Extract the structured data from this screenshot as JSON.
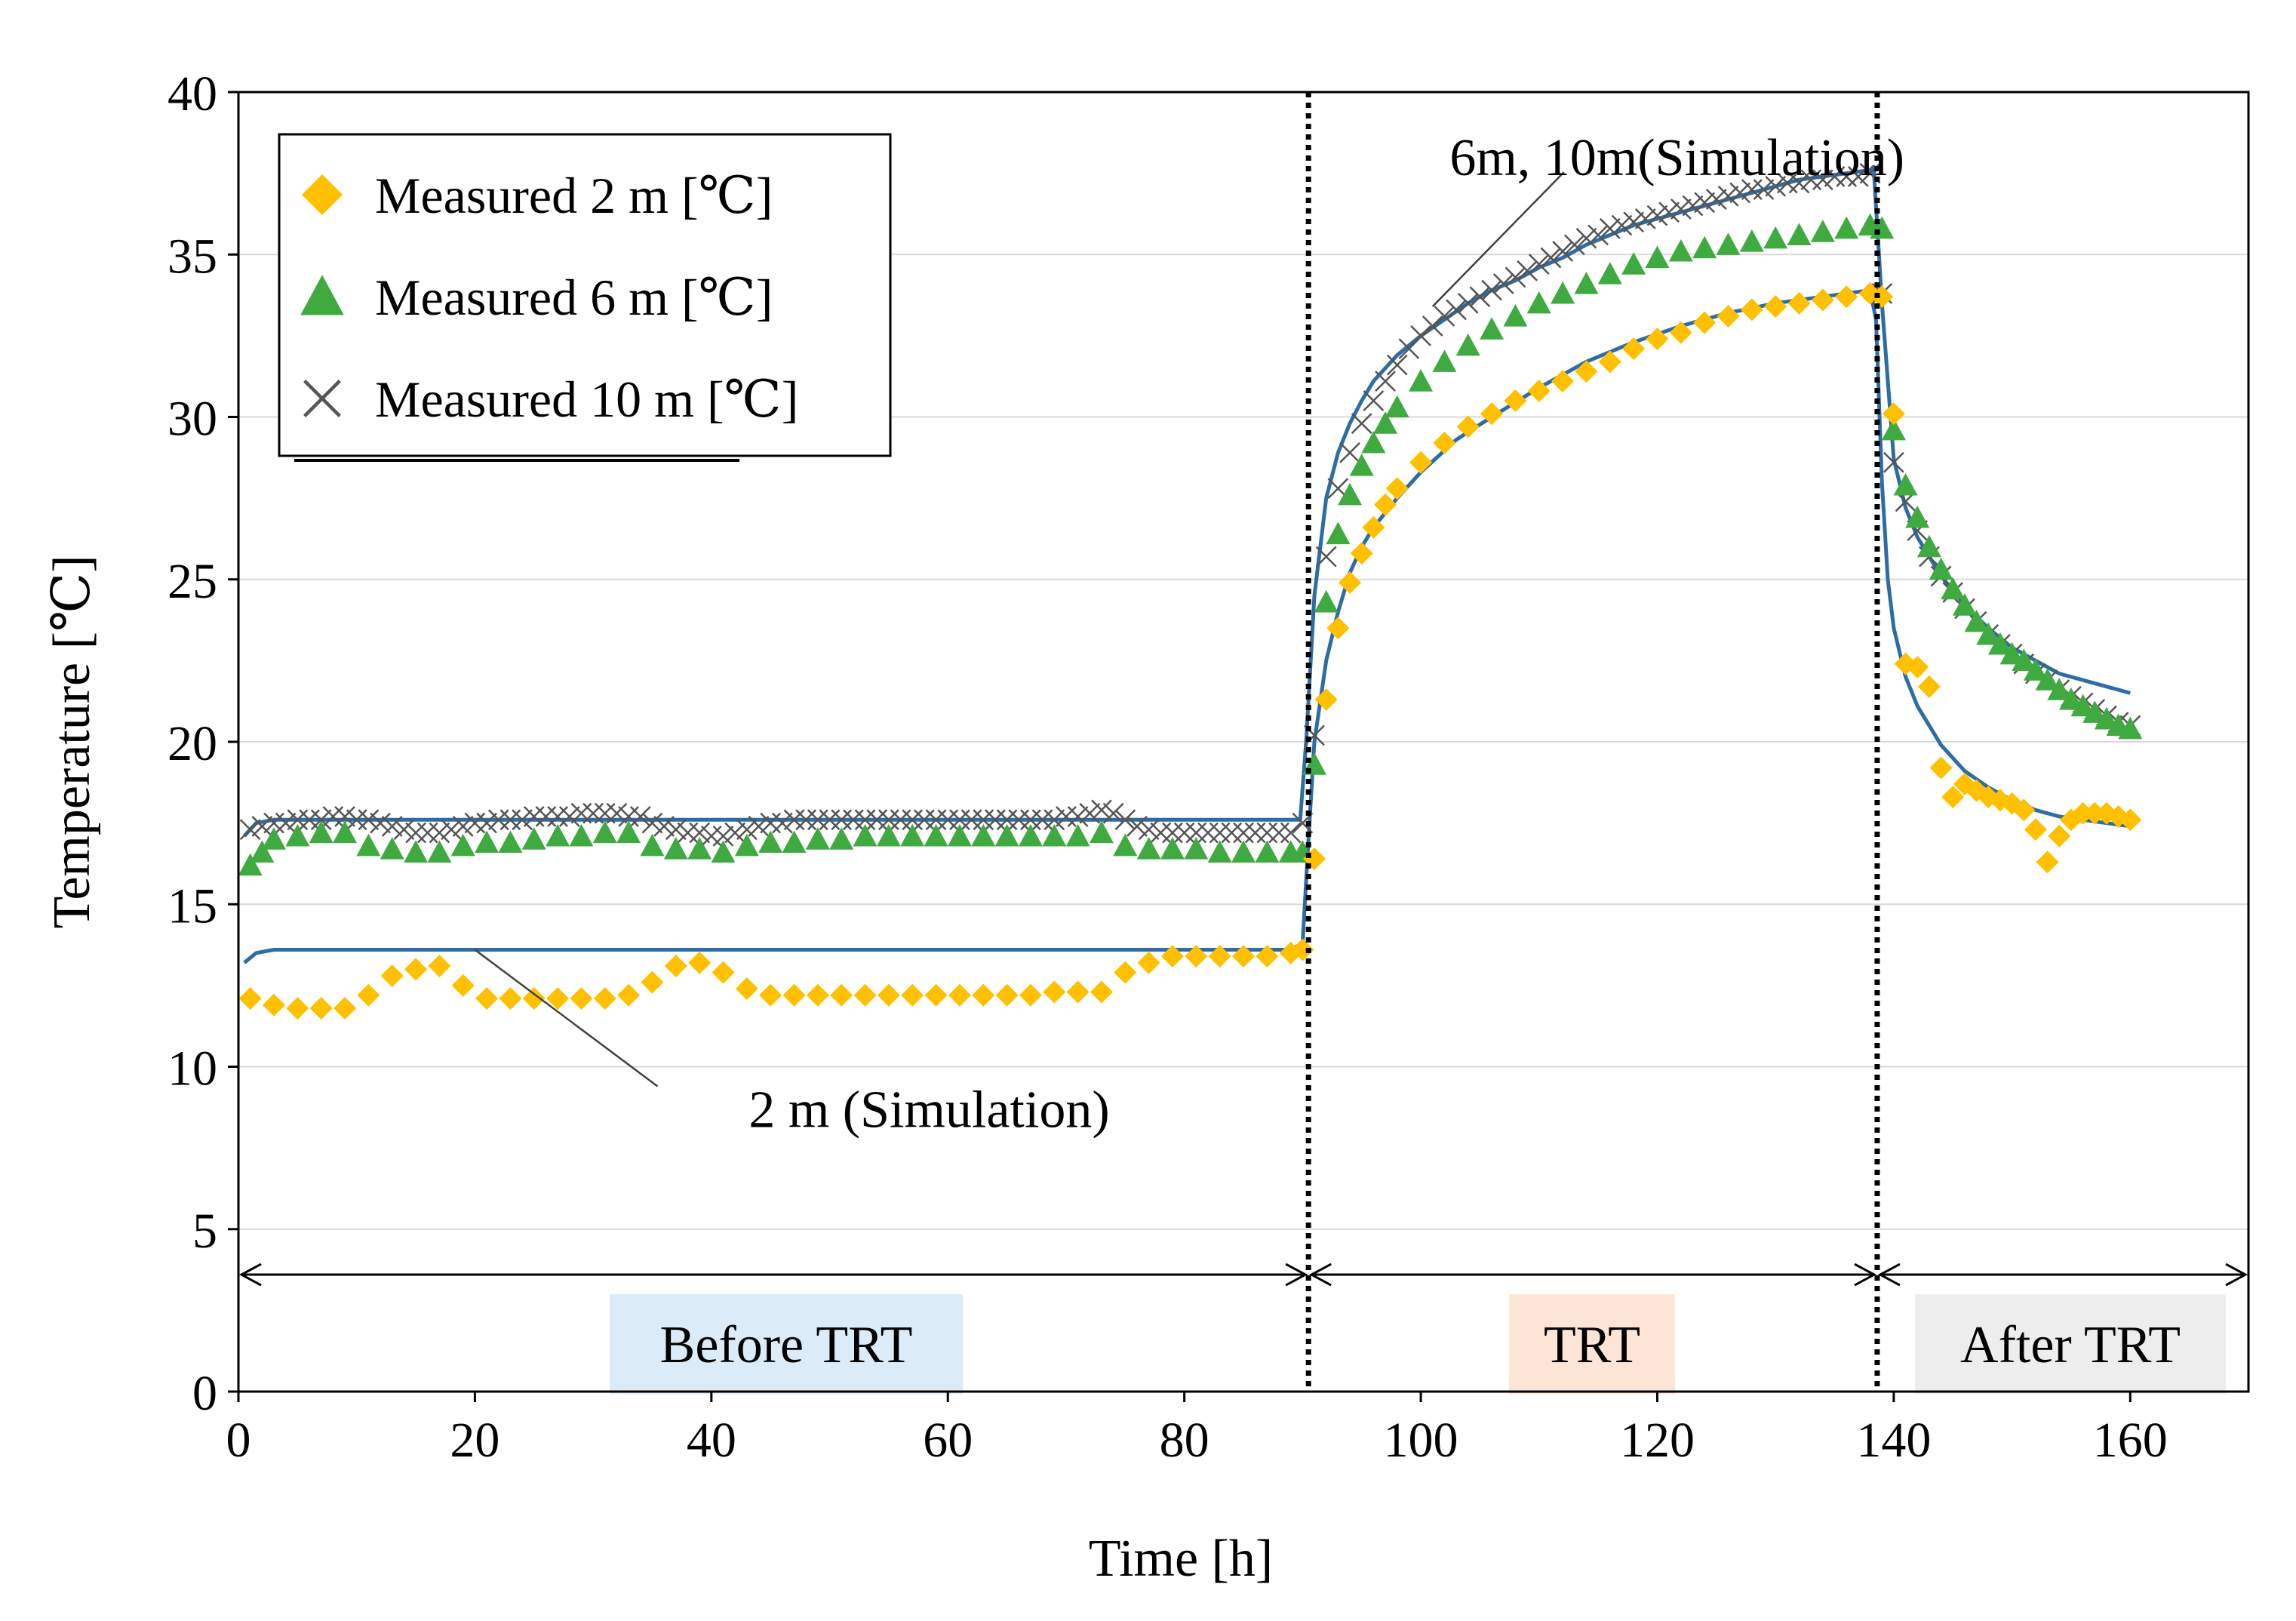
{
  "chart_data": {
    "type": "scatter",
    "xlabel": "Time  [h]",
    "ylabel": "Temperature  [℃]",
    "xlim": [
      0,
      170
    ],
    "ylim": [
      0,
      40
    ],
    "xticks": [
      0,
      20,
      40,
      60,
      80,
      100,
      120,
      140,
      160
    ],
    "yticks": [
      0,
      5,
      10,
      15,
      20,
      25,
      30,
      35,
      40
    ],
    "grid": "horizontal",
    "legend_position": "top-left",
    "colors": {
      "measured_2m": "#FFC000",
      "measured_6m": "#3FAA3F",
      "measured_10m": "#555555",
      "simulation": "#2E6DA4",
      "before_box": "#DCEBF8",
      "trt_box": "#FCE4D6",
      "after_box": "#EDEDED"
    },
    "series": [
      {
        "name": "Measured 2 m [℃]",
        "marker": "diamond",
        "x": [
          1,
          3,
          5,
          7,
          9,
          11,
          13,
          15,
          17,
          19,
          21,
          23,
          25,
          27,
          29,
          31,
          33,
          35,
          37,
          39,
          41,
          43,
          45,
          47,
          49,
          51,
          53,
          55,
          57,
          59,
          61,
          63,
          65,
          67,
          69,
          71,
          73,
          75,
          77,
          79,
          81,
          83,
          85,
          87,
          89,
          90,
          91,
          92,
          93,
          94,
          95,
          96,
          97,
          98,
          100,
          102,
          104,
          106,
          108,
          110,
          112,
          114,
          116,
          118,
          120,
          122,
          124,
          126,
          128,
          130,
          132,
          134,
          136,
          138,
          139,
          140,
          141,
          142,
          143,
          144,
          145,
          146,
          147,
          148,
          149,
          150,
          151,
          152,
          153,
          154,
          155,
          156,
          157,
          158,
          159,
          160
        ],
        "y": [
          12.1,
          11.9,
          11.8,
          11.8,
          11.8,
          12.2,
          12.8,
          13,
          13.1,
          12.5,
          12.1,
          12.1,
          12.1,
          12.1,
          12.1,
          12.1,
          12.2,
          12.6,
          13.1,
          13.2,
          12.9,
          12.4,
          12.2,
          12.2,
          12.2,
          12.2,
          12.2,
          12.2,
          12.2,
          12.2,
          12.2,
          12.2,
          12.2,
          12.2,
          12.3,
          12.3,
          12.3,
          12.9,
          13.2,
          13.4,
          13.4,
          13.4,
          13.4,
          13.4,
          13.5,
          13.6,
          16.4,
          21.3,
          23.5,
          24.9,
          25.8,
          26.6,
          27.3,
          27.8,
          28.6,
          29.2,
          29.7,
          30.1,
          30.5,
          30.8,
          31.1,
          31.4,
          31.7,
          32.1,
          32.4,
          32.6,
          32.9,
          33.1,
          33.3,
          33.4,
          33.5,
          33.6,
          33.7,
          33.8,
          33.7,
          30.1,
          22.4,
          22.3,
          21.7,
          19.2,
          18.3,
          18.7,
          18.5,
          18.3,
          18.2,
          18.1,
          17.9,
          17.3,
          16.3,
          17.1,
          17.6,
          17.8,
          17.8,
          17.8,
          17.7,
          17.6
        ]
      },
      {
        "name": "Measured 6 m [℃]",
        "marker": "triangle",
        "x": [
          1,
          2,
          3,
          5,
          7,
          9,
          11,
          13,
          15,
          17,
          19,
          21,
          23,
          25,
          27,
          29,
          31,
          33,
          35,
          37,
          39,
          41,
          43,
          45,
          47,
          49,
          51,
          53,
          55,
          57,
          59,
          61,
          63,
          65,
          67,
          69,
          71,
          73,
          75,
          77,
          79,
          81,
          83,
          85,
          87,
          89,
          90,
          91,
          92,
          93,
          94,
          95,
          96,
          97,
          98,
          100,
          102,
          104,
          106,
          108,
          110,
          112,
          114,
          116,
          118,
          120,
          122,
          124,
          126,
          128,
          130,
          132,
          134,
          136,
          138,
          139,
          140,
          141,
          142,
          143,
          144,
          145,
          146,
          147,
          148,
          149,
          150,
          151,
          152,
          153,
          154,
          155,
          156,
          157,
          158,
          159,
          160
        ],
        "y": [
          16.2,
          16.6,
          17,
          17.1,
          17.2,
          17.2,
          16.8,
          16.7,
          16.6,
          16.6,
          16.8,
          16.9,
          16.9,
          17,
          17.1,
          17.1,
          17.2,
          17.2,
          16.8,
          16.7,
          16.7,
          16.6,
          16.8,
          16.9,
          16.9,
          17,
          17,
          17.1,
          17.1,
          17.1,
          17.1,
          17.1,
          17.1,
          17.1,
          17.1,
          17.1,
          17.1,
          17.2,
          16.8,
          16.7,
          16.7,
          16.7,
          16.6,
          16.6,
          16.6,
          16.6,
          16.6,
          19.3,
          24.3,
          26.4,
          27.6,
          28.5,
          29.2,
          29.8,
          30.3,
          31.1,
          31.7,
          32.2,
          32.7,
          33.1,
          33.5,
          33.8,
          34.1,
          34.4,
          34.7,
          34.9,
          35.1,
          35.2,
          35.3,
          35.4,
          35.5,
          35.6,
          35.7,
          35.8,
          35.9,
          35.8,
          29.6,
          27.9,
          26.9,
          26,
          25.3,
          24.7,
          24.2,
          23.7,
          23.3,
          23,
          22.7,
          22.5,
          22.2,
          21.9,
          21.6,
          21.3,
          21.1,
          20.9,
          20.7,
          20.5,
          20.4
        ]
      },
      {
        "name": "Measured 10 m [℃]",
        "marker": "x",
        "x": [
          1,
          2,
          3,
          4,
          5,
          6,
          7,
          8,
          9,
          10,
          11,
          12,
          13,
          14,
          15,
          16,
          17,
          18,
          19,
          20,
          21,
          22,
          23,
          24,
          25,
          26,
          27,
          28,
          29,
          30,
          31,
          32,
          33,
          34,
          35,
          36,
          37,
          38,
          39,
          40,
          41,
          42,
          43,
          44,
          45,
          46,
          47,
          48,
          49,
          50,
          51,
          52,
          53,
          54,
          55,
          56,
          57,
          58,
          59,
          60,
          61,
          62,
          63,
          64,
          65,
          66,
          67,
          68,
          69,
          70,
          71,
          72,
          73,
          74,
          75,
          76,
          77,
          78,
          79,
          80,
          81,
          82,
          83,
          84,
          85,
          86,
          87,
          88,
          89,
          90,
          91,
          92,
          93,
          94,
          95,
          96,
          97,
          98,
          99,
          100,
          101,
          102,
          103,
          104,
          105,
          106,
          107,
          108,
          109,
          110,
          111,
          112,
          113,
          114,
          115,
          116,
          117,
          118,
          119,
          120,
          121,
          122,
          123,
          124,
          125,
          126,
          127,
          128,
          129,
          130,
          131,
          132,
          133,
          134,
          135,
          136,
          137,
          138,
          139,
          140,
          141,
          142,
          143,
          144,
          145,
          146,
          147,
          148,
          149,
          150,
          151,
          152,
          153,
          154,
          155,
          156,
          157,
          158,
          159,
          160
        ],
        "y": [
          17.3,
          17.4,
          17.5,
          17.5,
          17.6,
          17.6,
          17.6,
          17.7,
          17.7,
          17.6,
          17.6,
          17.5,
          17.4,
          17.3,
          17.2,
          17.2,
          17.2,
          17.3,
          17.4,
          17.5,
          17.5,
          17.6,
          17.6,
          17.6,
          17.7,
          17.7,
          17.7,
          17.7,
          17.8,
          17.8,
          17.8,
          17.8,
          17.7,
          17.7,
          17.5,
          17.4,
          17.3,
          17.2,
          17.2,
          17.1,
          17.1,
          17.2,
          17.3,
          17.4,
          17.5,
          17.5,
          17.6,
          17.6,
          17.6,
          17.6,
          17.6,
          17.6,
          17.6,
          17.6,
          17.6,
          17.6,
          17.6,
          17.6,
          17.6,
          17.6,
          17.6,
          17.6,
          17.6,
          17.6,
          17.6,
          17.6,
          17.6,
          17.6,
          17.6,
          17.7,
          17.7,
          17.8,
          17.9,
          17.8,
          17.6,
          17.4,
          17.3,
          17.2,
          17.2,
          17.2,
          17.2,
          17.2,
          17.2,
          17.2,
          17.2,
          17.2,
          17.2,
          17.2,
          17.2,
          17.5,
          20.2,
          25.7,
          27.8,
          28.9,
          29.8,
          30.5,
          31.1,
          31.6,
          32.1,
          32.5,
          32.8,
          33.1,
          33.3,
          33.5,
          33.7,
          33.9,
          34.1,
          34.3,
          34.5,
          34.7,
          34.9,
          35.1,
          35.3,
          35.5,
          35.6,
          35.8,
          35.9,
          36,
          36.1,
          36.2,
          36.3,
          36.4,
          36.5,
          36.6,
          36.7,
          36.8,
          36.9,
          37,
          37,
          37.1,
          37.2,
          37.2,
          37.3,
          37.3,
          37.4,
          37.4,
          37.4,
          37.5,
          33.8,
          28.6,
          27.4,
          26.5,
          25.7,
          25.1,
          24.6,
          24.1,
          23.7,
          23.3,
          23,
          22.7,
          22.4,
          22.1,
          21.9,
          21.6,
          21.4,
          21.2,
          21,
          20.8,
          20.6,
          20.5
        ]
      },
      {
        "name": "2 m (Simulation)",
        "marker": "line",
        "x": [
          0.5,
          1.5,
          3,
          20,
          89,
          90,
          90.5,
          91,
          92,
          93,
          94,
          95,
          96,
          98,
          100,
          103,
          106,
          110,
          114,
          118,
          122,
          126,
          130,
          134,
          136,
          138,
          138.5,
          139,
          139.5,
          140,
          141,
          142,
          144,
          146,
          148,
          150,
          152,
          154,
          156,
          158,
          160
        ],
        "y": [
          13.2,
          13.5,
          13.6,
          13.6,
          13.6,
          13.8,
          17,
          20,
          22.5,
          24,
          25.2,
          26,
          26.6,
          27.5,
          28.3,
          29.3,
          30,
          30.9,
          31.7,
          32.3,
          32.8,
          33.2,
          33.5,
          33.7,
          33.8,
          33.9,
          33,
          28,
          25,
          23.5,
          22,
          21.1,
          19.9,
          19.1,
          18.6,
          18.2,
          17.9,
          17.7,
          17.6,
          17.5,
          17.4
        ]
      },
      {
        "name": "6m, 10m(Simulation)",
        "marker": "line",
        "x": [
          0.5,
          1.5,
          3,
          20,
          89.8,
          90.3,
          91,
          92,
          93,
          94,
          95,
          96,
          98,
          100,
          102,
          104,
          106,
          108,
          110,
          112,
          114,
          116,
          118,
          120,
          122,
          124,
          126,
          128,
          130,
          132,
          134,
          136,
          138,
          138.3,
          139,
          140,
          141,
          142,
          144,
          146,
          148,
          150,
          152,
          154,
          156,
          158,
          160
        ],
        "y": [
          17.1,
          17.5,
          17.6,
          17.6,
          17.6,
          20,
          24.5,
          27.5,
          28.9,
          29.8,
          30.5,
          31.1,
          31.9,
          32.5,
          33,
          33.5,
          33.9,
          34.2,
          34.6,
          34.9,
          35.3,
          35.6,
          35.9,
          36.1,
          36.3,
          36.5,
          36.7,
          36.9,
          37.1,
          37.3,
          37.4,
          37.5,
          37.6,
          37.7,
          33.5,
          28.7,
          27.2,
          26.3,
          25.1,
          24.2,
          23.5,
          22.9,
          22.5,
          22.1,
          21.9,
          21.7,
          21.5
        ]
      }
    ],
    "legend": [
      "Measured 2 m [℃]",
      "Measured 6 m [℃]",
      "Measured 10 m [℃]"
    ],
    "annotations": [
      {
        "text": "6m, 10m(Simulation)",
        "target": [
          101,
          33.4
        ],
        "text_at": [
          107,
          38
        ]
      },
      {
        "text": "2 m (Simulation)",
        "target": [
          20,
          13.6
        ],
        "text_at": [
          38,
          8.7
        ]
      }
    ],
    "phase_lines_x": [
      90.5,
      138.6
    ],
    "phases": [
      {
        "label": "Before TRT",
        "from": 0,
        "to": 90.5
      },
      {
        "label": "TRT",
        "from": 90.5,
        "to": 138.6
      },
      {
        "label": "After TRT",
        "from": 138.6,
        "to": 170
      }
    ],
    "phase_arrow_y": 3.6
  }
}
